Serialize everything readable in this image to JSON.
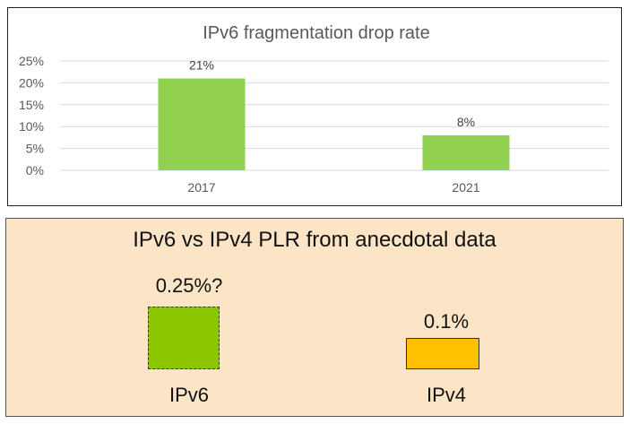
{
  "chart_data": [
    {
      "type": "bar",
      "title": "IPv6 fragmentation drop rate",
      "categories": [
        "2017",
        "2021"
      ],
      "values": [
        21,
        8
      ],
      "data_labels": [
        "21%",
        "8%"
      ],
      "ylim": [
        0,
        25
      ],
      "yticks": [
        "0%",
        "5%",
        "10%",
        "15%",
        "20%",
        "25%"
      ],
      "grid": true,
      "bar_color": "#92d050"
    },
    {
      "type": "bar",
      "title": "IPv6 vs IPv4 PLR from anecdotal data",
      "categories": [
        "IPv6",
        "IPv4"
      ],
      "values": [
        0.25,
        0.1
      ],
      "data_labels": [
        "0.25%?",
        "0.1%"
      ],
      "colors": [
        "#8cc600",
        "#ffc000"
      ],
      "background": "#fce4c7"
    }
  ]
}
